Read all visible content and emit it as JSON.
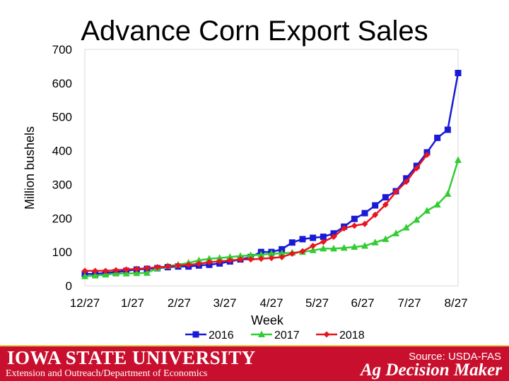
{
  "chart_data": {
    "type": "line",
    "title": "Advance Corn Export Sales",
    "xlabel": "Week",
    "ylabel": "Million bushels",
    "ylim": [
      0,
      700
    ],
    "yticks": [
      0,
      100,
      200,
      300,
      400,
      500,
      600,
      700
    ],
    "xtick_labels": [
      "12/27",
      "1/27",
      "2/27",
      "3/27",
      "4/27",
      "5/27",
      "6/27",
      "7/27",
      "8/27"
    ],
    "grid": false,
    "legend_position": "bottom",
    "series": [
      {
        "name": "2016",
        "color": "#1a1ad6",
        "marker": "square",
        "values": [
          35,
          35,
          38,
          40,
          44,
          48,
          50,
          52,
          55,
          57,
          57,
          60,
          62,
          66,
          72,
          78,
          85,
          100,
          100,
          108,
          128,
          138,
          142,
          145,
          155,
          175,
          198,
          215,
          238,
          262,
          280,
          318,
          355,
          395,
          438,
          462,
          630
        ]
      },
      {
        "name": "2017",
        "color": "#33cc33",
        "marker": "triangle",
        "values": [
          28,
          30,
          33,
          36,
          36,
          37,
          38,
          52,
          58,
          62,
          68,
          75,
          80,
          82,
          85,
          88,
          90,
          92,
          95,
          96,
          98,
          100,
          105,
          110,
          110,
          112,
          115,
          118,
          128,
          138,
          155,
          172,
          195,
          222,
          240,
          272,
          372
        ]
      },
      {
        "name": "2018",
        "color": "#e8141e",
        "marker": "diamond",
        "values": [
          44,
          44,
          44,
          46,
          48,
          50,
          52,
          55,
          57,
          60,
          62,
          65,
          70,
          72,
          75,
          78,
          78,
          80,
          82,
          85,
          95,
          102,
          118,
          130,
          145,
          170,
          178,
          183,
          210,
          240,
          278,
          308,
          348,
          388
        ]
      }
    ]
  },
  "footer": {
    "university": "Iowa State University",
    "department": "Extension and Outreach/Department of Economics",
    "brand": "Ag Decision Maker",
    "source": "Source: USDA-FAS",
    "colors": {
      "background": "#c8102e",
      "rule": "#e8c84a"
    }
  }
}
